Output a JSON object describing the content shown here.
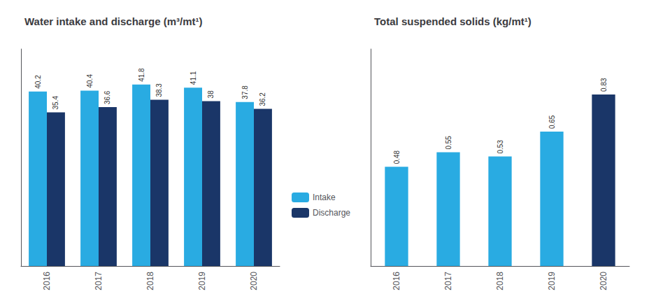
{
  "chart_data": [
    {
      "type": "bar",
      "title": "Water intake and discharge (m³/mt¹)",
      "categories": [
        "2016",
        "2017",
        "2018",
        "2019",
        "2020"
      ],
      "series": [
        {
          "name": "Intake",
          "color": "#29ABE2",
          "values": [
            40.2,
            40.4,
            41.8,
            41.1,
            37.8
          ]
        },
        {
          "name": "Discharge",
          "color": "#1A3668",
          "values": [
            35.4,
            36.6,
            38.3,
            38.0,
            36.2
          ]
        }
      ],
      "ylim": [
        0,
        50
      ],
      "data_labels": true,
      "tick_labels": "x",
      "grid": false,
      "legend": "right"
    },
    {
      "type": "bar",
      "title": "Total suspended solids (kg/mt¹)",
      "categories": [
        "2016",
        "2017",
        "2018",
        "2019",
        "2020"
      ],
      "values": [
        0.48,
        0.55,
        0.53,
        0.65,
        0.83
      ],
      "colors": [
        "#29ABE2",
        "#29ABE2",
        "#29ABE2",
        "#29ABE2",
        "#1A3668"
      ],
      "ylim": [
        0,
        1.05
      ],
      "data_labels": true,
      "tick_labels": "x",
      "grid": false
    }
  ]
}
